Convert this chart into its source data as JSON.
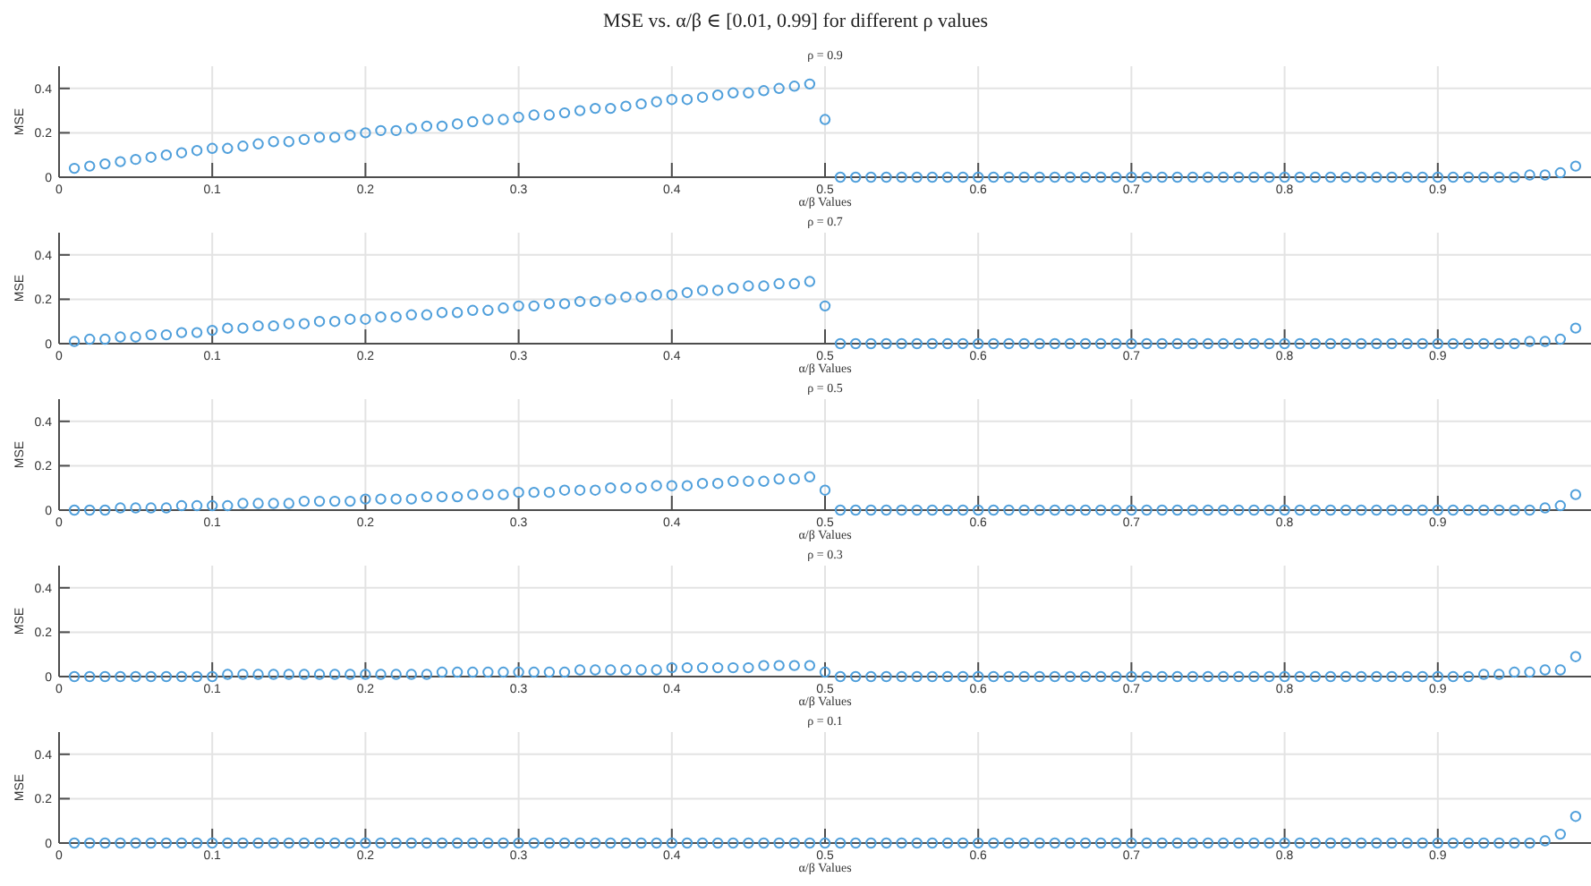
{
  "chart_data": [
    {
      "type": "scatter",
      "title": "MSE vs. α/β ∈ [0.01, 0.99] for different ρ values",
      "subtitle": "ρ = 0.9",
      "xlabel": "α/β Values",
      "ylabel": "MSE",
      "xlim": [
        0,
        1
      ],
      "ylim": [
        0,
        0.5
      ],
      "xticks": [
        0,
        0.1,
        0.2,
        0.3,
        0.4,
        0.5,
        0.6,
        0.7,
        0.8,
        0.9
      ],
      "yticks": [
        0,
        0.2,
        0.4
      ],
      "grid": true,
      "marker": "circle",
      "x": [
        0.01,
        0.02,
        0.03,
        0.04,
        0.05,
        0.06,
        0.07,
        0.08,
        0.09,
        0.1,
        0.11,
        0.12,
        0.13,
        0.14,
        0.15,
        0.16,
        0.17,
        0.18,
        0.19,
        0.2,
        0.21,
        0.22,
        0.23,
        0.24,
        0.25,
        0.26,
        0.27,
        0.28,
        0.29,
        0.3,
        0.31,
        0.32,
        0.33,
        0.34,
        0.35,
        0.36,
        0.37,
        0.38,
        0.39,
        0.4,
        0.41,
        0.42,
        0.43,
        0.44,
        0.45,
        0.46,
        0.47,
        0.48,
        0.49,
        0.5,
        0.51,
        0.52,
        0.53,
        0.54,
        0.55,
        0.56,
        0.57,
        0.58,
        0.59,
        0.6,
        0.61,
        0.62,
        0.63,
        0.64,
        0.65,
        0.66,
        0.67,
        0.68,
        0.69,
        0.7,
        0.71,
        0.72,
        0.73,
        0.74,
        0.75,
        0.76,
        0.77,
        0.78,
        0.79,
        0.8,
        0.81,
        0.82,
        0.83,
        0.84,
        0.85,
        0.86,
        0.87,
        0.88,
        0.89,
        0.9,
        0.91,
        0.92,
        0.93,
        0.94,
        0.95,
        0.96,
        0.97,
        0.98,
        0.99
      ],
      "series": [
        {
          "color": "#4f9fdb",
          "values": [
            0.04,
            0.05,
            0.06,
            0.07,
            0.08,
            0.09,
            0.1,
            0.11,
            0.12,
            0.13,
            0.13,
            0.14,
            0.15,
            0.16,
            0.16,
            0.17,
            0.18,
            0.18,
            0.19,
            0.2,
            0.21,
            0.21,
            0.22,
            0.23,
            0.23,
            0.24,
            0.25,
            0.26,
            0.26,
            0.27,
            0.28,
            0.28,
            0.29,
            0.3,
            0.31,
            0.31,
            0.32,
            0.33,
            0.34,
            0.35,
            0.35,
            0.36,
            0.37,
            0.38,
            0.38,
            0.39,
            0.4,
            0.41,
            0.42,
            0.26,
            0,
            0,
            0,
            0,
            0,
            0,
            0,
            0,
            0,
            0,
            0,
            0,
            0,
            0,
            0,
            0,
            0,
            0,
            0,
            0,
            0,
            0,
            0,
            0,
            0,
            0,
            0,
            0,
            0,
            0,
            0,
            0,
            0,
            0,
            0,
            0,
            0,
            0,
            0,
            0,
            0,
            0,
            0,
            0,
            0,
            0.01,
            0.01,
            0.02,
            0.05
          ]
        }
      ]
    },
    {
      "type": "scatter",
      "title": "ρ = 0.7",
      "xlabel": "α/β Values",
      "ylabel": "MSE",
      "xlim": [
        0,
        1
      ],
      "ylim": [
        0,
        0.5
      ],
      "xticks": [
        0,
        0.1,
        0.2,
        0.3,
        0.4,
        0.5,
        0.6,
        0.7,
        0.8,
        0.9
      ],
      "yticks": [
        0,
        0.2,
        0.4
      ],
      "grid": true,
      "marker": "circle",
      "x": [
        0.01,
        0.02,
        0.03,
        0.04,
        0.05,
        0.06,
        0.07,
        0.08,
        0.09,
        0.1,
        0.11,
        0.12,
        0.13,
        0.14,
        0.15,
        0.16,
        0.17,
        0.18,
        0.19,
        0.2,
        0.21,
        0.22,
        0.23,
        0.24,
        0.25,
        0.26,
        0.27,
        0.28,
        0.29,
        0.3,
        0.31,
        0.32,
        0.33,
        0.34,
        0.35,
        0.36,
        0.37,
        0.38,
        0.39,
        0.4,
        0.41,
        0.42,
        0.43,
        0.44,
        0.45,
        0.46,
        0.47,
        0.48,
        0.49,
        0.5,
        0.51,
        0.52,
        0.53,
        0.54,
        0.55,
        0.56,
        0.57,
        0.58,
        0.59,
        0.6,
        0.61,
        0.62,
        0.63,
        0.64,
        0.65,
        0.66,
        0.67,
        0.68,
        0.69,
        0.7,
        0.71,
        0.72,
        0.73,
        0.74,
        0.75,
        0.76,
        0.77,
        0.78,
        0.79,
        0.8,
        0.81,
        0.82,
        0.83,
        0.84,
        0.85,
        0.86,
        0.87,
        0.88,
        0.89,
        0.9,
        0.91,
        0.92,
        0.93,
        0.94,
        0.95,
        0.96,
        0.97,
        0.98,
        0.99
      ],
      "series": [
        {
          "color": "#4f9fdb",
          "values": [
            0.01,
            0.02,
            0.02,
            0.03,
            0.03,
            0.04,
            0.04,
            0.05,
            0.05,
            0.06,
            0.07,
            0.07,
            0.08,
            0.08,
            0.09,
            0.09,
            0.1,
            0.1,
            0.11,
            0.11,
            0.12,
            0.12,
            0.13,
            0.13,
            0.14,
            0.14,
            0.15,
            0.15,
            0.16,
            0.17,
            0.17,
            0.18,
            0.18,
            0.19,
            0.19,
            0.2,
            0.21,
            0.21,
            0.22,
            0.22,
            0.23,
            0.24,
            0.24,
            0.25,
            0.26,
            0.26,
            0.27,
            0.27,
            0.28,
            0.17,
            0,
            0,
            0,
            0,
            0,
            0,
            0,
            0,
            0,
            0,
            0,
            0,
            0,
            0,
            0,
            0,
            0,
            0,
            0,
            0,
            0,
            0,
            0,
            0,
            0,
            0,
            0,
            0,
            0,
            0,
            0,
            0,
            0,
            0,
            0,
            0,
            0,
            0,
            0,
            0,
            0,
            0,
            0,
            0,
            0,
            0.01,
            0.01,
            0.02,
            0.07
          ]
        }
      ]
    },
    {
      "type": "scatter",
      "title": "ρ = 0.5",
      "xlabel": "α/β Values",
      "ylabel": "MSE",
      "xlim": [
        0,
        1
      ],
      "ylim": [
        0,
        0.5
      ],
      "xticks": [
        0,
        0.1,
        0.2,
        0.3,
        0.4,
        0.5,
        0.6,
        0.7,
        0.8,
        0.9
      ],
      "yticks": [
        0,
        0.2,
        0.4
      ],
      "grid": true,
      "marker": "circle",
      "x": [
        0.01,
        0.02,
        0.03,
        0.04,
        0.05,
        0.06,
        0.07,
        0.08,
        0.09,
        0.1,
        0.11,
        0.12,
        0.13,
        0.14,
        0.15,
        0.16,
        0.17,
        0.18,
        0.19,
        0.2,
        0.21,
        0.22,
        0.23,
        0.24,
        0.25,
        0.26,
        0.27,
        0.28,
        0.29,
        0.3,
        0.31,
        0.32,
        0.33,
        0.34,
        0.35,
        0.36,
        0.37,
        0.38,
        0.39,
        0.4,
        0.41,
        0.42,
        0.43,
        0.44,
        0.45,
        0.46,
        0.47,
        0.48,
        0.49,
        0.5,
        0.51,
        0.52,
        0.53,
        0.54,
        0.55,
        0.56,
        0.57,
        0.58,
        0.59,
        0.6,
        0.61,
        0.62,
        0.63,
        0.64,
        0.65,
        0.66,
        0.67,
        0.68,
        0.69,
        0.7,
        0.71,
        0.72,
        0.73,
        0.74,
        0.75,
        0.76,
        0.77,
        0.78,
        0.79,
        0.8,
        0.81,
        0.82,
        0.83,
        0.84,
        0.85,
        0.86,
        0.87,
        0.88,
        0.89,
        0.9,
        0.91,
        0.92,
        0.93,
        0.94,
        0.95,
        0.96,
        0.97,
        0.98,
        0.99
      ],
      "series": [
        {
          "color": "#4f9fdb",
          "values": [
            0,
            0,
            0,
            0.01,
            0.01,
            0.01,
            0.01,
            0.02,
            0.02,
            0.02,
            0.02,
            0.03,
            0.03,
            0.03,
            0.03,
            0.04,
            0.04,
            0.04,
            0.04,
            0.05,
            0.05,
            0.05,
            0.05,
            0.06,
            0.06,
            0.06,
            0.07,
            0.07,
            0.07,
            0.08,
            0.08,
            0.08,
            0.09,
            0.09,
            0.09,
            0.1,
            0.1,
            0.1,
            0.11,
            0.11,
            0.11,
            0.12,
            0.12,
            0.13,
            0.13,
            0.13,
            0.14,
            0.14,
            0.15,
            0.09,
            0,
            0,
            0,
            0,
            0,
            0,
            0,
            0,
            0,
            0,
            0,
            0,
            0,
            0,
            0,
            0,
            0,
            0,
            0,
            0,
            0,
            0,
            0,
            0,
            0,
            0,
            0,
            0,
            0,
            0,
            0,
            0,
            0,
            0,
            0,
            0,
            0,
            0,
            0,
            0,
            0,
            0,
            0,
            0,
            0,
            0,
            0.01,
            0.02,
            0.07
          ]
        }
      ]
    },
    {
      "type": "scatter",
      "title": "ρ = 0.3",
      "xlabel": "α/β Values",
      "ylabel": "MSE",
      "xlim": [
        0,
        1
      ],
      "ylim": [
        0,
        0.5
      ],
      "xticks": [
        0,
        0.1,
        0.2,
        0.3,
        0.4,
        0.5,
        0.6,
        0.7,
        0.8,
        0.9
      ],
      "yticks": [
        0,
        0.2,
        0.4
      ],
      "grid": true,
      "marker": "circle",
      "x": [
        0.01,
        0.02,
        0.03,
        0.04,
        0.05,
        0.06,
        0.07,
        0.08,
        0.09,
        0.1,
        0.11,
        0.12,
        0.13,
        0.14,
        0.15,
        0.16,
        0.17,
        0.18,
        0.19,
        0.2,
        0.21,
        0.22,
        0.23,
        0.24,
        0.25,
        0.26,
        0.27,
        0.28,
        0.29,
        0.3,
        0.31,
        0.32,
        0.33,
        0.34,
        0.35,
        0.36,
        0.37,
        0.38,
        0.39,
        0.4,
        0.41,
        0.42,
        0.43,
        0.44,
        0.45,
        0.46,
        0.47,
        0.48,
        0.49,
        0.5,
        0.51,
        0.52,
        0.53,
        0.54,
        0.55,
        0.56,
        0.57,
        0.58,
        0.59,
        0.6,
        0.61,
        0.62,
        0.63,
        0.64,
        0.65,
        0.66,
        0.67,
        0.68,
        0.69,
        0.7,
        0.71,
        0.72,
        0.73,
        0.74,
        0.75,
        0.76,
        0.77,
        0.78,
        0.79,
        0.8,
        0.81,
        0.82,
        0.83,
        0.84,
        0.85,
        0.86,
        0.87,
        0.88,
        0.89,
        0.9,
        0.91,
        0.92,
        0.93,
        0.94,
        0.95,
        0.96,
        0.97,
        0.98,
        0.99
      ],
      "series": [
        {
          "color": "#4f9fdb",
          "values": [
            0,
            0,
            0,
            0,
            0,
            0,
            0,
            0,
            0,
            0,
            0.01,
            0.01,
            0.01,
            0.01,
            0.01,
            0.01,
            0.01,
            0.01,
            0.01,
            0.01,
            0.01,
            0.01,
            0.01,
            0.01,
            0.02,
            0.02,
            0.02,
            0.02,
            0.02,
            0.02,
            0.02,
            0.02,
            0.02,
            0.03,
            0.03,
            0.03,
            0.03,
            0.03,
            0.03,
            0.04,
            0.04,
            0.04,
            0.04,
            0.04,
            0.04,
            0.05,
            0.05,
            0.05,
            0.05,
            0.02,
            0,
            0,
            0,
            0,
            0,
            0,
            0,
            0,
            0,
            0,
            0,
            0,
            0,
            0,
            0,
            0,
            0,
            0,
            0,
            0,
            0,
            0,
            0,
            0,
            0,
            0,
            0,
            0,
            0,
            0,
            0,
            0,
            0,
            0,
            0,
            0,
            0,
            0,
            0,
            0,
            0,
            0,
            0.01,
            0.01,
            0.02,
            0.02,
            0.03,
            0.03,
            0.09
          ]
        }
      ]
    },
    {
      "type": "scatter",
      "title": "ρ = 0.1",
      "xlabel": "α/β Values",
      "ylabel": "MSE",
      "xlim": [
        0,
        1
      ],
      "ylim": [
        0,
        0.5
      ],
      "xticks": [
        0,
        0.1,
        0.2,
        0.3,
        0.4,
        0.5,
        0.6,
        0.7,
        0.8,
        0.9
      ],
      "yticks": [
        0,
        0.2,
        0.4
      ],
      "grid": true,
      "marker": "circle",
      "x": [
        0.01,
        0.02,
        0.03,
        0.04,
        0.05,
        0.06,
        0.07,
        0.08,
        0.09,
        0.1,
        0.11,
        0.12,
        0.13,
        0.14,
        0.15,
        0.16,
        0.17,
        0.18,
        0.19,
        0.2,
        0.21,
        0.22,
        0.23,
        0.24,
        0.25,
        0.26,
        0.27,
        0.28,
        0.29,
        0.3,
        0.31,
        0.32,
        0.33,
        0.34,
        0.35,
        0.36,
        0.37,
        0.38,
        0.39,
        0.4,
        0.41,
        0.42,
        0.43,
        0.44,
        0.45,
        0.46,
        0.47,
        0.48,
        0.49,
        0.5,
        0.51,
        0.52,
        0.53,
        0.54,
        0.55,
        0.56,
        0.57,
        0.58,
        0.59,
        0.6,
        0.61,
        0.62,
        0.63,
        0.64,
        0.65,
        0.66,
        0.67,
        0.68,
        0.69,
        0.7,
        0.71,
        0.72,
        0.73,
        0.74,
        0.75,
        0.76,
        0.77,
        0.78,
        0.79,
        0.8,
        0.81,
        0.82,
        0.83,
        0.84,
        0.85,
        0.86,
        0.87,
        0.88,
        0.89,
        0.9,
        0.91,
        0.92,
        0.93,
        0.94,
        0.95,
        0.96,
        0.97,
        0.98,
        0.99
      ],
      "series": [
        {
          "color": "#4f9fdb",
          "values": [
            0,
            0,
            0,
            0,
            0,
            0,
            0,
            0,
            0,
            0,
            0,
            0,
            0,
            0,
            0,
            0,
            0,
            0,
            0,
            0,
            0,
            0,
            0,
            0,
            0,
            0,
            0,
            0,
            0,
            0,
            0,
            0,
            0,
            0,
            0,
            0,
            0,
            0,
            0,
            0,
            0,
            0,
            0,
            0,
            0,
            0,
            0,
            0,
            0,
            0,
            0,
            0,
            0,
            0,
            0,
            0,
            0,
            0,
            0,
            0,
            0,
            0,
            0,
            0,
            0,
            0,
            0,
            0,
            0,
            0,
            0,
            0,
            0,
            0,
            0,
            0,
            0,
            0,
            0,
            0,
            0,
            0,
            0,
            0,
            0,
            0,
            0,
            0,
            0,
            0,
            0,
            0,
            0,
            0,
            0,
            0,
            0.01,
            0.04,
            0.12
          ]
        }
      ]
    }
  ]
}
